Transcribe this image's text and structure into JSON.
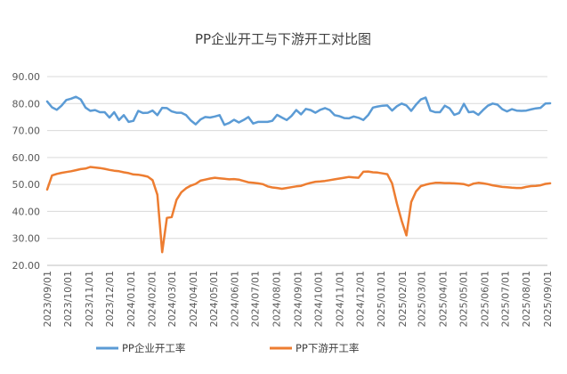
{
  "chart_data": {
    "type": "line",
    "title": "PP企业开工与下游开工对比图",
    "xlabel": "",
    "ylabel": "",
    "ylim": [
      20,
      90
    ],
    "yticks": [
      "20.00",
      "30.00",
      "40.00",
      "50.00",
      "60.00",
      "70.00",
      "80.00",
      "90.00"
    ],
    "xticks": [
      "2023/09/01",
      "2023/10/01",
      "2023/11/01",
      "2023/12/01",
      "2024/01/01",
      "2024/02/01",
      "2024/03/01",
      "2024/04/01",
      "2024/05/01",
      "2024/06/01",
      "2024/07/01",
      "2024/08/01",
      "2024/09/01",
      "2024/10/01",
      "2024/11/01",
      "2024/12/01",
      "2025/01/01",
      "2025/02/01",
      "2025/03/01",
      "2025/04/01",
      "2025/05/01",
      "2025/06/01",
      "2025/07/01",
      "2025/08/01",
      "2025/09/01"
    ],
    "grid": true,
    "legend_position": "bottom",
    "series": [
      {
        "name": "PP企业开工率",
        "color": "#5B9BD5",
        "values": [
          [
            "2023/09/01",
            80.8
          ],
          [
            "2023/09/08",
            78.6
          ],
          [
            "2023/09/15",
            77.7
          ],
          [
            "2023/09/22",
            79.2
          ],
          [
            "2023/09/29",
            81.3
          ],
          [
            "2023/10/06",
            81.8
          ],
          [
            "2023/10/13",
            82.5
          ],
          [
            "2023/10/20",
            81.5
          ],
          [
            "2023/10/27",
            78.5
          ],
          [
            "2023/11/03",
            77.3
          ],
          [
            "2023/11/10",
            77.6
          ],
          [
            "2023/11/17",
            76.8
          ],
          [
            "2023/11/24",
            76.8
          ],
          [
            "2023/12/01",
            74.8
          ],
          [
            "2023/12/08",
            76.8
          ],
          [
            "2023/12/15",
            73.9
          ],
          [
            "2023/12/22",
            75.7
          ],
          [
            "2023/12/29",
            73.2
          ],
          [
            "2024/01/05",
            73.6
          ],
          [
            "2024/01/12",
            77.3
          ],
          [
            "2024/01/19",
            76.5
          ],
          [
            "2024/01/26",
            76.6
          ],
          [
            "2024/02/02",
            77.4
          ],
          [
            "2024/02/09",
            75.7
          ],
          [
            "2024/02/16",
            78.4
          ],
          [
            "2024/02/23",
            78.3
          ],
          [
            "2024/03/01",
            77.1
          ],
          [
            "2024/03/08",
            76.6
          ],
          [
            "2024/03/15",
            76.6
          ],
          [
            "2024/03/22",
            75.7
          ],
          [
            "2024/03/29",
            73.7
          ],
          [
            "2024/04/05",
            72.3
          ],
          [
            "2024/04/12",
            74.1
          ],
          [
            "2024/04/19",
            75.0
          ],
          [
            "2024/04/26",
            74.8
          ],
          [
            "2024/05/03",
            75.2
          ],
          [
            "2024/05/10",
            75.7
          ],
          [
            "2024/05/17",
            72.1
          ],
          [
            "2024/05/24",
            72.8
          ],
          [
            "2024/05/31",
            74.0
          ],
          [
            "2024/06/07",
            73.0
          ],
          [
            "2024/06/14",
            73.9
          ],
          [
            "2024/06/21",
            75.0
          ],
          [
            "2024/06/28",
            72.6
          ],
          [
            "2024/07/05",
            73.2
          ],
          [
            "2024/07/12",
            73.2
          ],
          [
            "2024/07/19",
            73.2
          ],
          [
            "2024/07/26",
            73.6
          ],
          [
            "2024/08/02",
            75.8
          ],
          [
            "2024/08/09",
            74.8
          ],
          [
            "2024/08/16",
            73.9
          ],
          [
            "2024/08/23",
            75.4
          ],
          [
            "2024/08/30",
            77.6
          ],
          [
            "2024/09/06",
            76.0
          ],
          [
            "2024/09/13",
            78.0
          ],
          [
            "2024/09/20",
            77.6
          ],
          [
            "2024/09/27",
            76.6
          ],
          [
            "2024/10/04",
            77.7
          ],
          [
            "2024/10/11",
            78.3
          ],
          [
            "2024/10/18",
            77.6
          ],
          [
            "2024/10/25",
            75.7
          ],
          [
            "2024/11/01",
            75.3
          ],
          [
            "2024/11/08",
            74.6
          ],
          [
            "2024/11/15",
            74.5
          ],
          [
            "2024/11/22",
            75.2
          ],
          [
            "2024/11/29",
            74.7
          ],
          [
            "2024/12/06",
            73.9
          ],
          [
            "2024/12/13",
            75.7
          ],
          [
            "2024/12/20",
            78.5
          ],
          [
            "2024/12/27",
            78.9
          ],
          [
            "2025/01/03",
            79.2
          ],
          [
            "2025/01/10",
            79.3
          ],
          [
            "2025/01/17",
            77.4
          ],
          [
            "2025/01/24",
            79.0
          ],
          [
            "2025/01/31",
            80.0
          ],
          [
            "2025/02/07",
            79.3
          ],
          [
            "2025/02/14",
            77.3
          ],
          [
            "2025/02/21",
            79.6
          ],
          [
            "2025/02/28",
            81.5
          ],
          [
            "2025/03/07",
            82.2
          ],
          [
            "2025/03/14",
            77.4
          ],
          [
            "2025/03/21",
            76.8
          ],
          [
            "2025/03/28",
            76.8
          ],
          [
            "2025/04/04",
            79.2
          ],
          [
            "2025/04/11",
            78.2
          ],
          [
            "2025/04/18",
            75.8
          ],
          [
            "2025/04/25",
            76.5
          ],
          [
            "2025/05/02",
            79.9
          ],
          [
            "2025/05/09",
            76.8
          ],
          [
            "2025/05/16",
            77.0
          ],
          [
            "2025/05/23",
            75.8
          ],
          [
            "2025/05/30",
            77.6
          ],
          [
            "2025/06/06",
            79.2
          ],
          [
            "2025/06/13",
            80.0
          ],
          [
            "2025/06/20",
            79.6
          ],
          [
            "2025/06/27",
            77.9
          ],
          [
            "2025/07/04",
            77.1
          ],
          [
            "2025/07/11",
            77.9
          ],
          [
            "2025/07/18",
            77.4
          ],
          [
            "2025/07/25",
            77.3
          ],
          [
            "2025/08/01",
            77.4
          ],
          [
            "2025/08/08",
            77.8
          ],
          [
            "2025/08/15",
            78.2
          ],
          [
            "2025/08/22",
            78.4
          ],
          [
            "2025/08/29",
            80.0
          ],
          [
            "2025/09/05",
            80.1
          ]
        ]
      },
      {
        "name": "PP下游开工率",
        "color": "#ED7D31",
        "values": [
          [
            "2023/09/01",
            48.1
          ],
          [
            "2023/09/08",
            53.3
          ],
          [
            "2023/09/15",
            53.9
          ],
          [
            "2023/09/22",
            54.3
          ],
          [
            "2023/09/29",
            54.6
          ],
          [
            "2023/10/06",
            54.9
          ],
          [
            "2023/10/13",
            55.3
          ],
          [
            "2023/10/20",
            55.7
          ],
          [
            "2023/10/27",
            55.9
          ],
          [
            "2023/11/03",
            56.5
          ],
          [
            "2023/11/10",
            56.3
          ],
          [
            "2023/11/17",
            56.1
          ],
          [
            "2023/11/24",
            55.8
          ],
          [
            "2023/12/01",
            55.4
          ],
          [
            "2023/12/08",
            55.1
          ],
          [
            "2023/12/15",
            54.9
          ],
          [
            "2023/12/22",
            54.5
          ],
          [
            "2023/12/29",
            54.2
          ],
          [
            "2024/01/05",
            53.7
          ],
          [
            "2024/01/12",
            53.6
          ],
          [
            "2024/01/19",
            53.3
          ],
          [
            "2024/01/26",
            52.9
          ],
          [
            "2024/02/02",
            51.6
          ],
          [
            "2024/02/09",
            46.2
          ],
          [
            "2024/02/16",
            24.9
          ],
          [
            "2024/02/23",
            37.6
          ],
          [
            "2024/03/01",
            37.9
          ],
          [
            "2024/03/08",
            44.3
          ],
          [
            "2024/03/15",
            47.1
          ],
          [
            "2024/03/22",
            48.6
          ],
          [
            "2024/03/29",
            49.6
          ],
          [
            "2024/04/05",
            50.2
          ],
          [
            "2024/04/12",
            51.4
          ],
          [
            "2024/04/19",
            51.8
          ],
          [
            "2024/04/26",
            52.2
          ],
          [
            "2024/05/03",
            52.5
          ],
          [
            "2024/05/10",
            52.3
          ],
          [
            "2024/05/17",
            52.1
          ],
          [
            "2024/05/24",
            51.9
          ],
          [
            "2024/05/31",
            52.0
          ],
          [
            "2024/06/07",
            51.8
          ],
          [
            "2024/06/14",
            51.3
          ],
          [
            "2024/06/21",
            50.8
          ],
          [
            "2024/06/28",
            50.6
          ],
          [
            "2024/07/05",
            50.4
          ],
          [
            "2024/07/12",
            50.1
          ],
          [
            "2024/07/19",
            49.3
          ],
          [
            "2024/07/26",
            48.9
          ],
          [
            "2024/08/02",
            48.7
          ],
          [
            "2024/08/09",
            48.4
          ],
          [
            "2024/08/16",
            48.7
          ],
          [
            "2024/08/23",
            49.0
          ],
          [
            "2024/08/30",
            49.3
          ],
          [
            "2024/09/06",
            49.5
          ],
          [
            "2024/09/13",
            50.1
          ],
          [
            "2024/09/20",
            50.6
          ],
          [
            "2024/09/27",
            51.0
          ],
          [
            "2024/10/04",
            51.1
          ],
          [
            "2024/10/11",
            51.3
          ],
          [
            "2024/10/18",
            51.6
          ],
          [
            "2024/10/25",
            51.9
          ],
          [
            "2024/11/01",
            52.2
          ],
          [
            "2024/11/08",
            52.5
          ],
          [
            "2024/11/15",
            52.8
          ],
          [
            "2024/11/22",
            52.6
          ],
          [
            "2024/11/29",
            52.5
          ],
          [
            "2024/12/06",
            54.7
          ],
          [
            "2024/12/13",
            54.8
          ],
          [
            "2024/12/20",
            54.5
          ],
          [
            "2024/12/27",
            54.4
          ],
          [
            "2025/01/03",
            54.1
          ],
          [
            "2025/01/10",
            53.8
          ],
          [
            "2025/01/17",
            50.4
          ],
          [
            "2025/01/24",
            42.9
          ],
          [
            "2025/01/31",
            36.6
          ],
          [
            "2025/02/07",
            31.1
          ],
          [
            "2025/02/14",
            43.5
          ],
          [
            "2025/02/21",
            47.4
          ],
          [
            "2025/02/28",
            49.4
          ],
          [
            "2025/03/07",
            49.9
          ],
          [
            "2025/03/14",
            50.3
          ],
          [
            "2025/03/21",
            50.6
          ],
          [
            "2025/03/28",
            50.6
          ],
          [
            "2025/04/04",
            50.5
          ],
          [
            "2025/04/11",
            50.5
          ],
          [
            "2025/04/18",
            50.4
          ],
          [
            "2025/04/25",
            50.3
          ],
          [
            "2025/05/02",
            50.1
          ],
          [
            "2025/05/09",
            49.6
          ],
          [
            "2025/05/16",
            50.3
          ],
          [
            "2025/05/23",
            50.6
          ],
          [
            "2025/05/30",
            50.4
          ],
          [
            "2025/06/06",
            50.1
          ],
          [
            "2025/06/13",
            49.7
          ],
          [
            "2025/06/20",
            49.4
          ],
          [
            "2025/06/27",
            49.1
          ],
          [
            "2025/07/04",
            49.0
          ],
          [
            "2025/07/11",
            48.8
          ],
          [
            "2025/07/18",
            48.7
          ],
          [
            "2025/07/25",
            48.7
          ],
          [
            "2025/08/01",
            49.1
          ],
          [
            "2025/08/08",
            49.4
          ],
          [
            "2025/08/15",
            49.5
          ],
          [
            "2025/08/22",
            49.7
          ],
          [
            "2025/08/29",
            50.2
          ],
          [
            "2025/09/05",
            50.4
          ]
        ]
      }
    ]
  }
}
